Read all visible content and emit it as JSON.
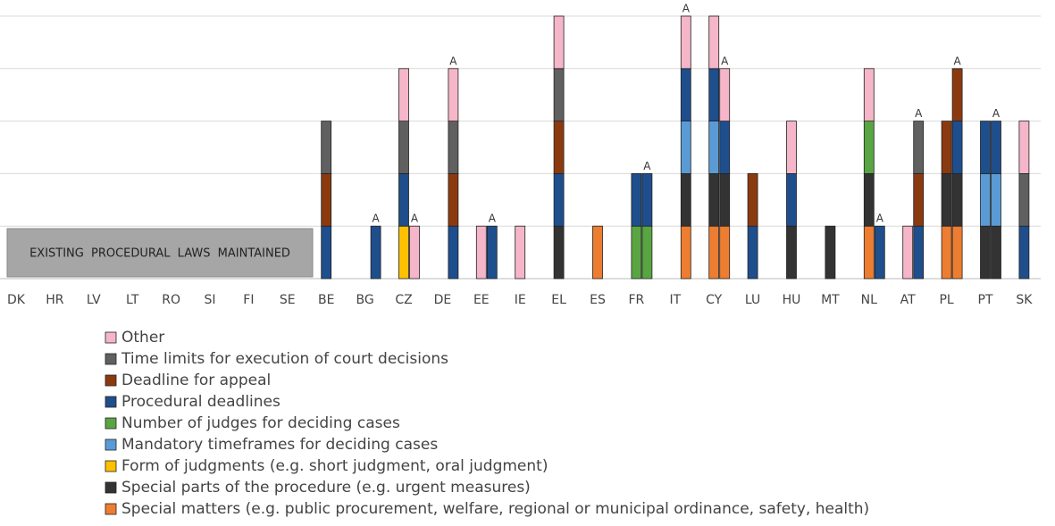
{
  "chart_data": {
    "type": "stacked-bar",
    "categories": [
      "DK",
      "HR",
      "LV",
      "LT",
      "RO",
      "SI",
      "FI",
      "SE",
      "BE",
      "BG",
      "CZ",
      "DE",
      "EE",
      "IE",
      "EL",
      "ES",
      "FR",
      "IT",
      "CY",
      "LU",
      "HU",
      "MT",
      "NL",
      "AT",
      "PL",
      "PT",
      "SK"
    ],
    "annotation": "A",
    "box_label": "EXISTING PROCEDURAL LAWS MAINTAINED",
    "ylim": [
      0,
      5
    ],
    "yticks": [
      0,
      1,
      2,
      3,
      4,
      5
    ],
    "grid": true,
    "series": [
      {
        "name": "Other",
        "color": "#f4b6c8",
        "values": [
          0,
          0,
          0,
          0,
          0,
          0,
          0,
          0,
          0,
          0,
          1,
          0,
          1,
          1,
          1,
          0,
          0,
          0,
          1,
          0,
          1,
          0,
          1,
          1,
          0,
          0,
          1
        ],
        "a_values": [
          0,
          0,
          0,
          0,
          0,
          0,
          0,
          0,
          0,
          0,
          1,
          1,
          0,
          0,
          0,
          0,
          0,
          1,
          1,
          0,
          0,
          0,
          0,
          0,
          0,
          0,
          0
        ]
      },
      {
        "name": "Time limits for execution of court decisions",
        "color": "#606060",
        "values": [
          0,
          0,
          0,
          0,
          0,
          0,
          0,
          0,
          1,
          0,
          1,
          0,
          0,
          0,
          1,
          0,
          0,
          0,
          0,
          0,
          0,
          0,
          0,
          0,
          0,
          0,
          1
        ],
        "a_values": [
          0,
          0,
          0,
          0,
          0,
          0,
          0,
          0,
          0,
          0,
          0,
          1,
          0,
          0,
          0,
          0,
          0,
          0,
          0,
          0,
          0,
          0,
          0,
          1,
          0,
          0,
          0
        ]
      },
      {
        "name": "Deadline for appeal",
        "color": "#8b3a10",
        "values": [
          0,
          0,
          0,
          0,
          0,
          0,
          0,
          0,
          1,
          0,
          0,
          0,
          0,
          0,
          1,
          0,
          0,
          0,
          0,
          1,
          0,
          0,
          0,
          0,
          1,
          0,
          0
        ],
        "a_values": [
          0,
          0,
          0,
          0,
          0,
          0,
          0,
          0,
          0,
          0,
          0,
          1,
          0,
          0,
          0,
          0,
          0,
          0,
          0,
          0,
          0,
          0,
          0,
          1,
          1,
          0,
          0
        ]
      },
      {
        "name": "Procedural deadlines",
        "color": "#1f4e8c",
        "values": [
          0,
          0,
          0,
          0,
          0,
          0,
          0,
          0,
          1,
          0,
          1,
          0,
          0,
          0,
          1,
          0,
          1,
          0,
          1,
          1,
          1,
          0,
          0,
          0,
          0,
          1,
          1
        ],
        "a_values": [
          0,
          0,
          0,
          0,
          0,
          0,
          0,
          0,
          0,
          1,
          0,
          1,
          1,
          0,
          0,
          0,
          1,
          1,
          1,
          0,
          0,
          0,
          1,
          1,
          1,
          1,
          0
        ]
      },
      {
        "name": "Number of judges for deciding cases",
        "color": "#5aa543",
        "values": [
          0,
          0,
          0,
          0,
          0,
          0,
          0,
          0,
          0,
          0,
          0,
          0,
          0,
          0,
          0,
          0,
          1,
          0,
          0,
          0,
          0,
          0,
          1,
          0,
          0,
          0,
          0
        ],
        "a_values": [
          0,
          0,
          0,
          0,
          0,
          0,
          0,
          0,
          0,
          0,
          0,
          0,
          0,
          0,
          0,
          0,
          1,
          0,
          0,
          0,
          0,
          0,
          0,
          0,
          0,
          0,
          0
        ]
      },
      {
        "name": "Mandatory timeframes for deciding cases",
        "color": "#5b9bd5",
        "values": [
          0,
          0,
          0,
          0,
          0,
          0,
          0,
          0,
          0,
          0,
          0,
          0,
          0,
          0,
          0,
          0,
          0,
          0,
          1,
          0,
          0,
          0,
          0,
          0,
          0,
          1,
          0
        ],
        "a_values": [
          0,
          0,
          0,
          0,
          0,
          0,
          0,
          0,
          0,
          0,
          0,
          0,
          0,
          0,
          0,
          0,
          0,
          1,
          0,
          0,
          0,
          0,
          0,
          0,
          0,
          1,
          0
        ]
      },
      {
        "name": "Form of judgments (e.g. short judgment, oral judgment)",
        "color": "#ffc000",
        "values": [
          0,
          0,
          0,
          0,
          0,
          0,
          0,
          0,
          0,
          0,
          1,
          0,
          0,
          0,
          0,
          0,
          0,
          0,
          0,
          0,
          0,
          0,
          0,
          0,
          0,
          0,
          0
        ],
        "a_values": [
          0,
          0,
          0,
          0,
          0,
          0,
          0,
          0,
          0,
          0,
          0,
          0,
          0,
          0,
          0,
          0,
          0,
          0,
          0,
          0,
          0,
          0,
          0,
          0,
          0,
          0,
          0
        ]
      },
      {
        "name": "Special parts of the procedure (e.g. urgent measures)",
        "color": "#333333",
        "values": [
          0,
          0,
          0,
          0,
          0,
          0,
          0,
          0,
          0,
          0,
          0,
          0,
          0,
          0,
          1,
          0,
          0,
          0,
          1,
          0,
          1,
          1,
          1,
          0,
          1,
          1,
          0
        ],
        "a_values": [
          0,
          0,
          0,
          0,
          0,
          0,
          0,
          0,
          0,
          0,
          0,
          0,
          0,
          0,
          0,
          0,
          0,
          1,
          1,
          0,
          0,
          0,
          0,
          0,
          1,
          1,
          0
        ]
      },
      {
        "name": "Special matters (e.g. public procurement, welfare, regional or municipal ordinance, safety, health)",
        "color": "#ed7d31",
        "values": [
          0,
          0,
          0,
          0,
          0,
          0,
          0,
          0,
          0,
          0,
          0,
          0,
          0,
          0,
          0,
          1,
          0,
          0,
          1,
          0,
          0,
          0,
          1,
          0,
          1,
          0,
          0
        ],
        "a_values": [
          0,
          0,
          0,
          0,
          0,
          0,
          0,
          0,
          0,
          0,
          0,
          0,
          0,
          0,
          0,
          0,
          0,
          1,
          1,
          0,
          0,
          0,
          0,
          0,
          1,
          0,
          0
        ]
      }
    ]
  }
}
